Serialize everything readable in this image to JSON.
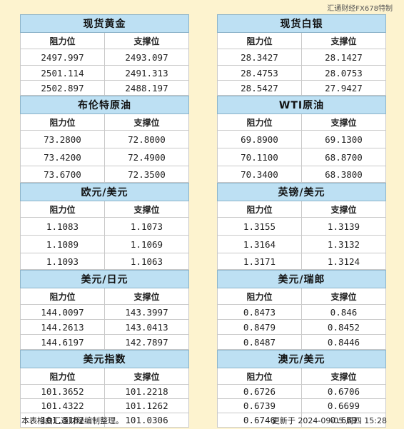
{
  "watermark": "汇通财经FX678特制",
  "column_headers": {
    "resistance": "阻力位",
    "support": "支撑位"
  },
  "left_tables": [
    {
      "title": "现货黄金",
      "rows": [
        [
          "2497.997",
          "2493.097"
        ],
        [
          "2501.114",
          "2491.313"
        ],
        [
          "2502.897",
          "2488.197"
        ]
      ]
    },
    {
      "title": "布伦特原油",
      "rows": [
        [
          "73.2800",
          "72.8000"
        ],
        [
          "73.4200",
          "72.4900"
        ],
        [
          "73.6700",
          "72.3500"
        ]
      ]
    },
    {
      "title": "欧元/美元",
      "rows": [
        [
          "1.1083",
          "1.1073"
        ],
        [
          "1.1089",
          "1.1069"
        ],
        [
          "1.1093",
          "1.1063"
        ]
      ]
    },
    {
      "title": "美元/日元",
      "rows": [
        [
          "144.0097",
          "143.3997"
        ],
        [
          "144.2613",
          "143.0413"
        ],
        [
          "144.6197",
          "142.7897"
        ]
      ]
    },
    {
      "title": "美元指数",
      "rows": [
        [
          "101.3652",
          "101.2218"
        ],
        [
          "101.4322",
          "101.1262"
        ],
        [
          "101.5182",
          "101.0306"
        ]
      ]
    }
  ],
  "right_tables": [
    {
      "title": "现货白银",
      "rows": [
        [
          "28.3427",
          "28.1427"
        ],
        [
          "28.4753",
          "28.0753"
        ],
        [
          "28.5427",
          "27.9427"
        ]
      ]
    },
    {
      "title": "WTI原油",
      "rows": [
        [
          "69.8900",
          "69.1300"
        ],
        [
          "70.1100",
          "68.8700"
        ],
        [
          "70.3400",
          "68.3800"
        ]
      ]
    },
    {
      "title": "英镑/美元",
      "rows": [
        [
          "1.3155",
          "1.3139"
        ],
        [
          "1.3164",
          "1.3132"
        ],
        [
          "1.3171",
          "1.3124"
        ]
      ]
    },
    {
      "title": "美元/瑞郎",
      "rows": [
        [
          "0.8473",
          "0.846"
        ],
        [
          "0.8479",
          "0.8452"
        ],
        [
          "0.8487",
          "0.8446"
        ]
      ]
    },
    {
      "title": "澳元/美元",
      "rows": [
        [
          "0.6726",
          "0.6706"
        ],
        [
          "0.6739",
          "0.6699"
        ],
        [
          "0.6746",
          "0.669"
        ]
      ]
    }
  ],
  "footer": {
    "note": "本表格由汇通财经编制整理。",
    "updated": "更新于  2024-09-05  周四  15:28"
  }
}
